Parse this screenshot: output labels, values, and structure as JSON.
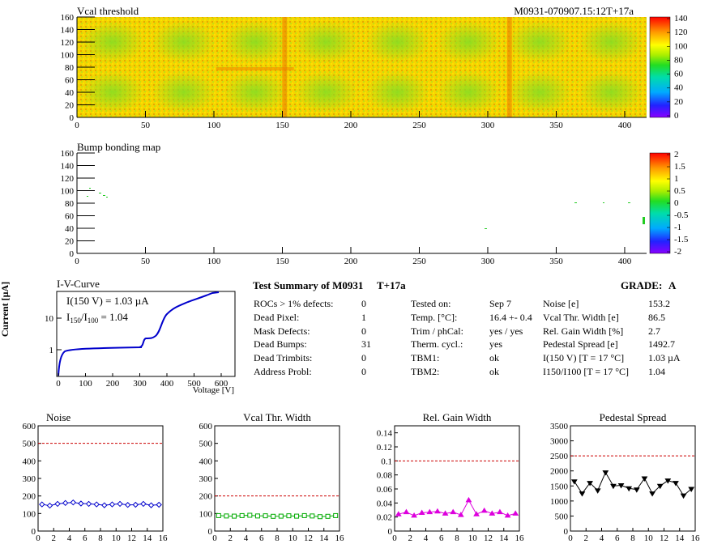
{
  "header": {
    "run_id": "M0931-070907.15:12T+17a"
  },
  "vcal_map": {
    "title": "Vcal threshold",
    "x_ticks": [
      "0",
      "50",
      "100",
      "150",
      "200",
      "250",
      "300",
      "350",
      "400"
    ],
    "y_ticks": [
      "0",
      "20",
      "40",
      "60",
      "80",
      "100",
      "120",
      "140",
      "160"
    ],
    "scale_ticks": [
      "0",
      "20",
      "40",
      "60",
      "80",
      "100",
      "120",
      "140"
    ],
    "xlim": [
      0,
      416
    ],
    "ylim": [
      0,
      160
    ]
  },
  "bump_map": {
    "title": "Bump bonding map",
    "x_ticks": [
      "0",
      "50",
      "100",
      "150",
      "200",
      "250",
      "300",
      "350",
      "400"
    ],
    "y_ticks": [
      "0",
      "20",
      "40",
      "60",
      "80",
      "100",
      "120",
      "140",
      "160"
    ],
    "scale_ticks": [
      "-2",
      "-1.5",
      "-1",
      "-0.5",
      "0",
      "0.5",
      "1",
      "1.5",
      "2"
    ]
  },
  "iv_curve": {
    "title": "I-V-Curve",
    "ylabel": "Current [µA]",
    "xlabel": "Voltage [V]",
    "annotation_1": "I(150 V) = 1.03 µA",
    "annotation_2_pre": "I",
    "annotation_2_sub1": "150",
    "annotation_2_mid": "/I",
    "annotation_2_sub2": "100",
    "annotation_2_post": " = 1.04",
    "x_ticks": [
      "0",
      "100",
      "200",
      "300",
      "400",
      "500",
      "600"
    ],
    "y_ticks": [
      "1",
      "10"
    ]
  },
  "summary": {
    "title": "Test Summary of M0931",
    "temp_tag": "T+17a",
    "grade_label": "GRADE:",
    "grade": "A",
    "col1": [
      {
        "label": "ROCs > 1% defects:",
        "value": "0"
      },
      {
        "label": "Dead Pixel:",
        "value": "1"
      },
      {
        "label": "Mask Defects:",
        "value": "0"
      },
      {
        "label": "Dead Bumps:",
        "value": "31"
      },
      {
        "label": "Dead Trimbits:",
        "value": "0"
      },
      {
        "label": "Address Probl:",
        "value": "0"
      }
    ],
    "col2": [
      {
        "label": "Tested on:",
        "value": "Sep 7"
      },
      {
        "label": "Temp. [°C]:",
        "value": "16.4 +- 0.4"
      },
      {
        "label": "Trim / phCal:",
        "value": "yes / yes"
      },
      {
        "label": "Therm. cycl.:",
        "value": "yes"
      },
      {
        "label": "TBM1:",
        "value": "ok"
      },
      {
        "label": "TBM2:",
        "value": "ok"
      }
    ],
    "col3": [
      {
        "label": "Noise [e]",
        "value": "153.2"
      },
      {
        "label": "Vcal Thr. Width [e]",
        "value": "86.5"
      },
      {
        "label": "Rel. Gain Width [%]",
        "value": "2.7"
      },
      {
        "label": "Pedestal Spread [e]",
        "value": "1492.7"
      },
      {
        "label": "I(150 V) [T = 17 °C]",
        "value": "1.03 µA"
      },
      {
        "label": "I150/I100 [T = 17 °C]",
        "value": "1.04"
      }
    ]
  },
  "chart_data": [
    {
      "type": "line",
      "title": "Noise",
      "xlim": [
        0,
        16
      ],
      "ylim": [
        0,
        600
      ],
      "x_ticks": [
        "0",
        "2",
        "4",
        "6",
        "8",
        "10",
        "12",
        "14",
        "16"
      ],
      "y_ticks": [
        "0",
        "100",
        "200",
        "300",
        "400",
        "500",
        "600"
      ],
      "limit": 500,
      "color": "#0000cc",
      "marker": "diamond",
      "x": [
        0.5,
        1.5,
        2.5,
        3.5,
        4.5,
        5.5,
        6.5,
        7.5,
        8.5,
        9.5,
        10.5,
        11.5,
        12.5,
        13.5,
        14.5,
        15.5
      ],
      "values": [
        152,
        145,
        155,
        160,
        163,
        157,
        155,
        152,
        147,
        152,
        155,
        149,
        150,
        155,
        147,
        150
      ]
    },
    {
      "type": "line",
      "title": "Vcal Thr. Width",
      "xlim": [
        0,
        16
      ],
      "ylim": [
        0,
        600
      ],
      "x_ticks": [
        "0",
        "2",
        "4",
        "6",
        "8",
        "10",
        "12",
        "14",
        "16"
      ],
      "y_ticks": [
        "0",
        "100",
        "200",
        "300",
        "400",
        "500",
        "600"
      ],
      "limit": 200,
      "color": "#00aa00",
      "marker": "square",
      "x": [
        0.5,
        1.5,
        2.5,
        3.5,
        4.5,
        5.5,
        6.5,
        7.5,
        8.5,
        9.5,
        10.5,
        11.5,
        12.5,
        13.5,
        14.5,
        15.5
      ],
      "values": [
        88,
        86,
        85,
        88,
        90,
        86,
        87,
        84,
        85,
        87,
        85,
        88,
        86,
        82,
        84,
        88
      ]
    },
    {
      "type": "line",
      "title": "Rel. Gain Width",
      "xlim": [
        0,
        16
      ],
      "ylim": [
        0,
        0.15
      ],
      "x_ticks": [
        "0",
        "2",
        "4",
        "6",
        "8",
        "10",
        "12",
        "14",
        "16"
      ],
      "y_ticks": [
        "0",
        "0.02",
        "0.04",
        "0.06",
        "0.08",
        "0.1",
        "0.12",
        "0.14"
      ],
      "limit": 0.1,
      "color": "#dd00dd",
      "marker": "triangle-up",
      "x": [
        0.5,
        1.5,
        2.5,
        3.5,
        4.5,
        5.5,
        6.5,
        7.5,
        8.5,
        9.5,
        10.5,
        11.5,
        12.5,
        13.5,
        14.5,
        15.5
      ],
      "values": [
        0.024,
        0.027,
        0.022,
        0.026,
        0.027,
        0.028,
        0.025,
        0.027,
        0.023,
        0.044,
        0.024,
        0.029,
        0.025,
        0.027,
        0.022,
        0.025
      ]
    },
    {
      "type": "line",
      "title": "Pedestal Spread",
      "xlim": [
        0,
        16
      ],
      "ylim": [
        0,
        3500
      ],
      "x_ticks": [
        "0",
        "2",
        "4",
        "6",
        "8",
        "10",
        "12",
        "14",
        "16"
      ],
      "y_ticks": [
        "0",
        "500",
        "1000",
        "1500",
        "2000",
        "2500",
        "3000",
        "3500"
      ],
      "limit": 2500,
      "color": "#000000",
      "marker": "triangle-down",
      "x": [
        0.5,
        1.5,
        2.5,
        3.5,
        4.5,
        5.5,
        6.5,
        7.5,
        8.5,
        9.5,
        10.5,
        11.5,
        12.5,
        13.5,
        14.5,
        15.5
      ],
      "values": [
        1650,
        1250,
        1600,
        1350,
        1950,
        1500,
        1520,
        1420,
        1380,
        1750,
        1250,
        1500,
        1680,
        1600,
        1180,
        1400
      ]
    }
  ]
}
